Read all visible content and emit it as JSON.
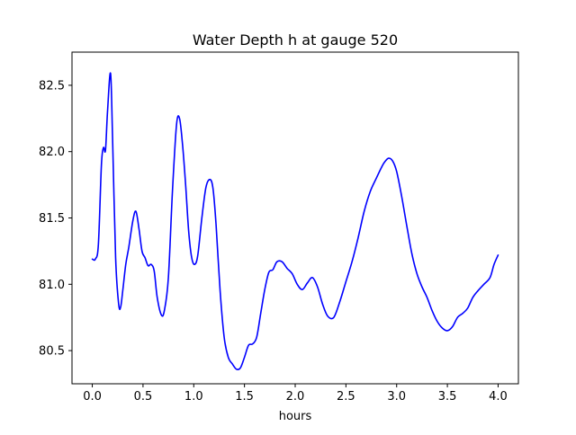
{
  "chart_data": {
    "type": "line",
    "title": "Water Depth h at gauge 520",
    "xlabel": "hours",
    "ylabel": "",
    "xlim": [
      -0.2,
      4.2
    ],
    "ylim": [
      80.25,
      82.75
    ],
    "xticks": [
      0.0,
      0.5,
      1.0,
      1.5,
      2.0,
      2.5,
      3.0,
      3.5,
      4.0
    ],
    "xtick_labels": [
      "0.0",
      "0.5",
      "1.0",
      "1.5",
      "2.0",
      "2.5",
      "3.0",
      "3.5",
      "4.0"
    ],
    "yticks": [
      80.5,
      81.0,
      81.5,
      82.0,
      82.5
    ],
    "ytick_labels": [
      "80.5",
      "81.0",
      "81.5",
      "82.0",
      "82.5"
    ],
    "grid": false,
    "line_color": "#0000ff",
    "series": [
      {
        "name": "",
        "x": [
          0.0,
          0.03,
          0.06,
          0.09,
          0.11,
          0.13,
          0.15,
          0.18,
          0.2,
          0.23,
          0.26,
          0.28,
          0.3,
          0.33,
          0.36,
          0.4,
          0.43,
          0.46,
          0.49,
          0.52,
          0.55,
          0.58,
          0.61,
          0.64,
          0.68,
          0.71,
          0.75,
          0.79,
          0.83,
          0.86,
          0.89,
          0.92,
          0.95,
          0.98,
          1.01,
          1.04,
          1.08,
          1.12,
          1.16,
          1.19,
          1.22,
          1.26,
          1.3,
          1.34,
          1.38,
          1.42,
          1.46,
          1.5,
          1.54,
          1.58,
          1.62,
          1.66,
          1.7,
          1.74,
          1.78,
          1.82,
          1.87,
          1.92,
          1.97,
          2.02,
          2.07,
          2.12,
          2.17,
          2.22,
          2.27,
          2.32,
          2.38,
          2.44,
          2.5,
          2.56,
          2.62,
          2.68,
          2.74,
          2.8,
          2.85,
          2.88,
          2.92,
          2.96,
          3.0,
          3.05,
          3.1,
          3.15,
          3.2,
          3.25,
          3.3,
          3.35,
          3.4,
          3.45,
          3.5,
          3.55,
          3.6,
          3.65,
          3.7,
          3.75,
          3.8,
          3.86,
          3.92,
          3.96,
          4.0
        ],
        "y": [
          81.19,
          81.19,
          81.3,
          81.9,
          82.03,
          82.01,
          82.3,
          82.59,
          82.1,
          81.2,
          80.85,
          80.83,
          80.95,
          81.15,
          81.28,
          81.48,
          81.55,
          81.42,
          81.25,
          81.2,
          81.14,
          81.15,
          81.1,
          80.9,
          80.77,
          80.8,
          81.05,
          81.7,
          82.2,
          82.25,
          82.05,
          81.75,
          81.4,
          81.2,
          81.15,
          81.22,
          81.5,
          81.73,
          81.79,
          81.72,
          81.45,
          80.95,
          80.6,
          80.45,
          80.4,
          80.36,
          80.37,
          80.45,
          80.54,
          80.55,
          80.6,
          80.78,
          80.96,
          81.09,
          81.11,
          81.17,
          81.17,
          81.12,
          81.08,
          81.0,
          80.96,
          81.01,
          81.05,
          80.98,
          80.85,
          80.76,
          80.75,
          80.87,
          81.02,
          81.17,
          81.35,
          81.55,
          81.7,
          81.8,
          81.88,
          81.92,
          81.95,
          81.93,
          81.85,
          81.66,
          81.44,
          81.23,
          81.08,
          80.98,
          80.9,
          80.8,
          80.72,
          80.67,
          80.65,
          80.68,
          80.75,
          80.78,
          80.82,
          80.9,
          80.95,
          81.0,
          81.05,
          81.15,
          81.22
        ]
      }
    ]
  }
}
